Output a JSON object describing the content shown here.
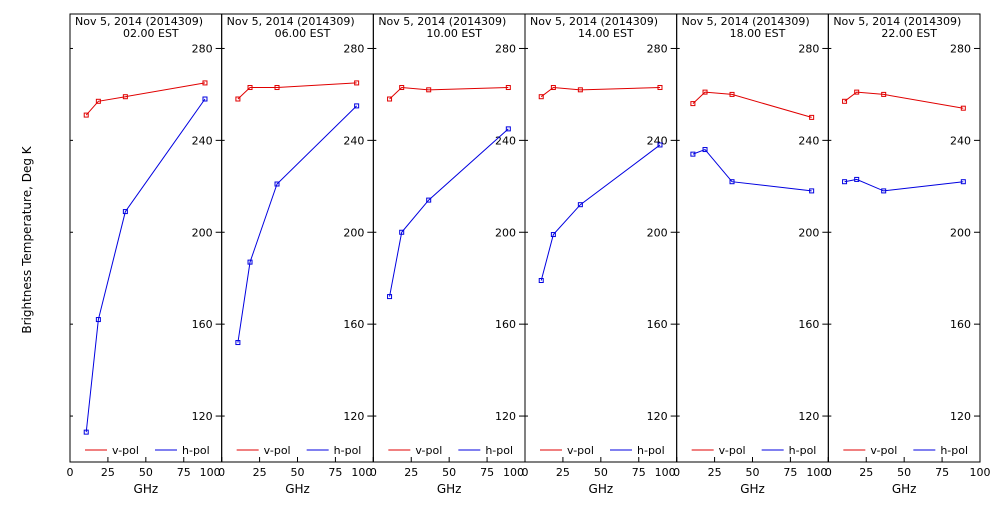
{
  "figure": {
    "ylabel": "Brightness Temperature, Deg K",
    "xlabel": "GHz"
  },
  "chart_data": [
    {
      "type": "line",
      "title_line1": "Nov  5, 2014 (2014309)",
      "title_line2": "02.00 EST",
      "xlabel": "GHz",
      "ylabel": "Brightness Temperature, Deg K",
      "x": [
        10.7,
        18.7,
        36.5,
        89.0
      ],
      "xlim": [
        0,
        100
      ],
      "ylim": [
        100,
        295
      ],
      "xticks": [
        "0",
        "25",
        "50",
        "75",
        "100"
      ],
      "yticks": [
        "120",
        "160",
        "200",
        "240",
        "280"
      ],
      "series": [
        {
          "name": "v-pol",
          "color": "#e00000",
          "values": [
            251,
            257,
            259,
            265
          ]
        },
        {
          "name": "h-pol",
          "color": "#0000e0",
          "values": [
            113,
            162,
            209,
            258
          ]
        }
      ]
    },
    {
      "type": "line",
      "title_line1": "Nov  5, 2014 (2014309)",
      "title_line2": "06.00 EST",
      "xlabel": "GHz",
      "x": [
        10.7,
        18.7,
        36.5,
        89.0
      ],
      "xlim": [
        0,
        100
      ],
      "ylim": [
        100,
        295
      ],
      "xticks": [
        "0",
        "25",
        "50",
        "75",
        "100"
      ],
      "yticks": [
        "120",
        "160",
        "200",
        "240",
        "280"
      ],
      "series": [
        {
          "name": "v-pol",
          "color": "#e00000",
          "values": [
            258,
            263,
            263,
            265
          ]
        },
        {
          "name": "h-pol",
          "color": "#0000e0",
          "values": [
            152,
            187,
            221,
            255
          ]
        }
      ]
    },
    {
      "type": "line",
      "title_line1": "Nov  5, 2014 (2014309)",
      "title_line2": "10.00 EST",
      "xlabel": "GHz",
      "x": [
        10.7,
        18.7,
        36.5,
        89.0
      ],
      "xlim": [
        0,
        100
      ],
      "ylim": [
        100,
        295
      ],
      "xticks": [
        "0",
        "25",
        "50",
        "75",
        "100"
      ],
      "yticks": [
        "120",
        "160",
        "200",
        "240",
        "280"
      ],
      "series": [
        {
          "name": "v-pol",
          "color": "#e00000",
          "values": [
            258,
            263,
            262,
            263
          ]
        },
        {
          "name": "h-pol",
          "color": "#0000e0",
          "values": [
            172,
            200,
            214,
            245
          ]
        }
      ]
    },
    {
      "type": "line",
      "title_line1": "Nov  5, 2014 (2014309)",
      "title_line2": "14.00 EST",
      "xlabel": "GHz",
      "x": [
        10.7,
        18.7,
        36.5,
        89.0
      ],
      "xlim": [
        0,
        100
      ],
      "ylim": [
        100,
        295
      ],
      "xticks": [
        "0",
        "25",
        "50",
        "75",
        "100"
      ],
      "yticks": [
        "120",
        "160",
        "200",
        "240",
        "280"
      ],
      "series": [
        {
          "name": "v-pol",
          "color": "#e00000",
          "values": [
            259,
            263,
            262,
            263
          ]
        },
        {
          "name": "h-pol",
          "color": "#0000e0",
          "values": [
            179,
            199,
            212,
            238
          ]
        }
      ]
    },
    {
      "type": "line",
      "title_line1": "Nov  5, 2014 (2014309)",
      "title_line2": "18.00 EST",
      "xlabel": "GHz",
      "x": [
        10.7,
        18.7,
        36.5,
        89.0
      ],
      "xlim": [
        0,
        100
      ],
      "ylim": [
        100,
        295
      ],
      "xticks": [
        "0",
        "25",
        "50",
        "75",
        "100"
      ],
      "yticks": [
        "120",
        "160",
        "200",
        "240",
        "280"
      ],
      "series": [
        {
          "name": "v-pol",
          "color": "#e00000",
          "values": [
            256,
            261,
            260,
            250
          ]
        },
        {
          "name": "h-pol",
          "color": "#0000e0",
          "values": [
            234,
            236,
            222,
            218
          ]
        }
      ]
    },
    {
      "type": "line",
      "title_line1": "Nov  5, 2014 (2014309)",
      "title_line2": "22.00 EST",
      "xlabel": "GHz",
      "x": [
        10.7,
        18.7,
        36.5,
        89.0
      ],
      "xlim": [
        0,
        100
      ],
      "ylim": [
        100,
        295
      ],
      "xticks": [
        "0",
        "25",
        "50",
        "75",
        "100"
      ],
      "yticks": [
        "120",
        "160",
        "200",
        "240",
        "280"
      ],
      "series": [
        {
          "name": "v-pol",
          "color": "#e00000",
          "values": [
            257,
            261,
            260,
            254
          ]
        },
        {
          "name": "h-pol",
          "color": "#0000e0",
          "values": [
            222,
            223,
            218,
            222
          ]
        }
      ]
    }
  ]
}
